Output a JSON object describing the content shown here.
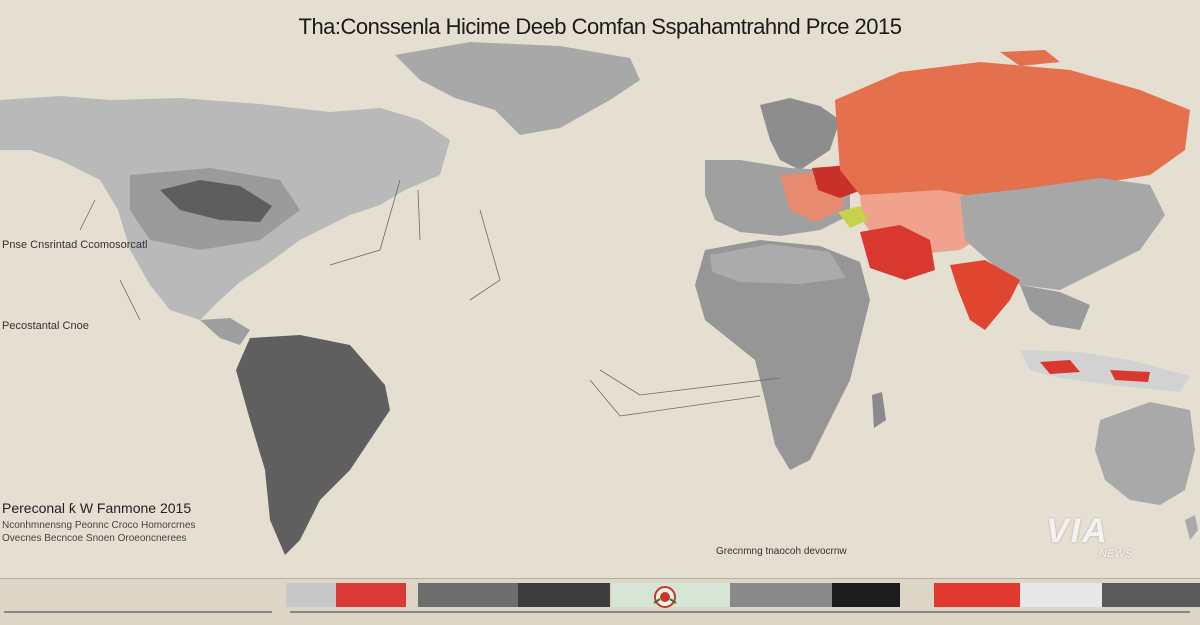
{
  "map": {
    "title": "Tha:Conssenla Hicime Deeb Comfan Sspahamtrahnd Prce 2015",
    "left_notes": [
      "Pnse Cnsrintad Ccomosorcatl",
      "Pecostantal Cnoe"
    ],
    "legend": {
      "heading": "Pereconal ƙ W Fanmone 2015",
      "lines": [
        "Nconhmnensng Peonnc Croco Homorcrnes",
        "Ovecnes Becncoe Snoen Oroeoncnerees"
      ]
    },
    "caption": "Grecnmng tnaocoh devocrnw"
  },
  "watermark": {
    "logo": "VIA",
    "sub": ".NEWS"
  },
  "legend_bar": {
    "swatches": [
      "#c8c8c8",
      "#d93a36",
      "#6e6e6e",
      "#3c3c3c",
      "#d6e6d6",
      "#8a8a8a",
      "#1c1c1c",
      "#e03a2e",
      "#e8e8e8",
      "#5a5a5a"
    ]
  },
  "colors": {
    "ocean": "#e4dfd1",
    "land_light": "#b9b9b9",
    "land_mid": "#8f8f8f",
    "land_dark": "#5e5e5e",
    "highlight_orange": "#e4704e",
    "highlight_salmon": "#f0a28c",
    "highlight_red": "#d9382e",
    "highlight_dark_red": "#b2241e"
  }
}
